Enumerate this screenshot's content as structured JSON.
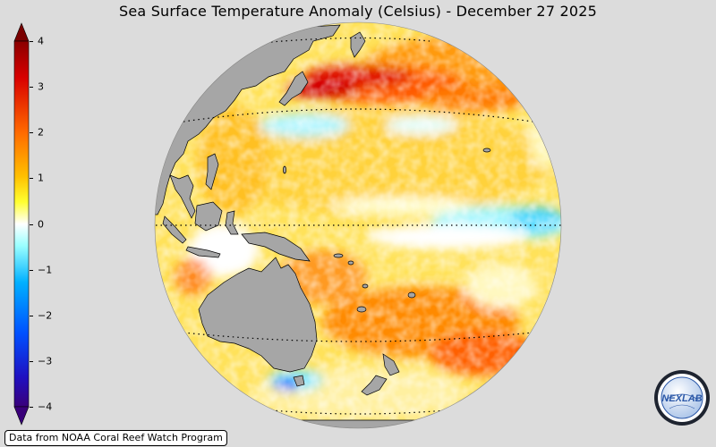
{
  "title": "Sea Surface Temperature Anomaly (Celsius) - December 27 2025",
  "colorbar": {
    "ticks": [
      "4",
      "3",
      "2",
      "1",
      "0",
      "−1",
      "−2",
      "−3",
      "−4"
    ],
    "min": -4,
    "max": 4,
    "colors": [
      "#3a007a",
      "#1a2cff",
      "#00a0ff",
      "#7fffff",
      "#ffffff",
      "#ffff40",
      "#ffb000",
      "#ff5a00",
      "#d00000",
      "#7a0000"
    ]
  },
  "map": {
    "projection": "orthographic",
    "ocean_neutral_color": "#ffe98a",
    "land_color": "#a6a6a6",
    "graticule_latitudes": [
      "60N",
      "30N",
      "0",
      "30S",
      "60S"
    ]
  },
  "credit": "Data from NOAA Coral Reef Watch Program",
  "logo": {
    "text": "NEXLAB",
    "icon": "globe-logo-icon"
  }
}
